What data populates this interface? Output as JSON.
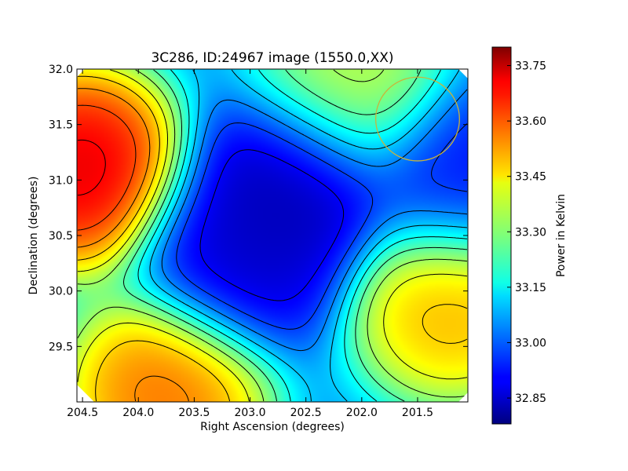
{
  "chart_data": {
    "type": "heatmap",
    "title": "3C286, ID:24967 image (1550.0,XX)",
    "xlabel": "Right Ascension (degrees)",
    "ylabel": "Declination (degrees)",
    "xlim": [
      204.55,
      201.05
    ],
    "ylim": [
      29.0,
      32.0
    ],
    "x_ticks": [
      204.5,
      204.0,
      203.5,
      203.0,
      202.5,
      202.0,
      201.5
    ],
    "x_tick_labels": [
      "204.5",
      "204.0",
      "203.5",
      "203.0",
      "202.5",
      "202.0",
      "201.5"
    ],
    "y_ticks": [
      29.5,
      30.0,
      30.5,
      31.0,
      31.5,
      32.0
    ],
    "y_tick_labels": [
      "29.5",
      "30.0",
      "30.5",
      "31.0",
      "31.5",
      "32.0"
    ],
    "colorbar": {
      "label": "Power in Kelvin",
      "range": [
        32.78,
        33.8
      ],
      "ticks": [
        32.85,
        33.0,
        33.15,
        33.3,
        33.45,
        33.6,
        33.75
      ],
      "tick_labels": [
        "32.85",
        "33.00",
        "33.15",
        "33.30",
        "33.45",
        "33.60",
        "33.75"
      ],
      "colormap": "jet"
    },
    "features": [
      {
        "ra": 204.5,
        "dec": 31.1,
        "value": 33.78,
        "kind": "max"
      },
      {
        "ra": 203.75,
        "dec": 29.1,
        "value": 33.62,
        "kind": "max"
      },
      {
        "ra": 201.2,
        "dec": 29.9,
        "value": 33.55,
        "kind": "max"
      },
      {
        "ra": 202.1,
        "dec": 31.85,
        "value": 33.4,
        "kind": "max"
      },
      {
        "ra": 202.6,
        "dec": 30.95,
        "value": 32.8,
        "kind": "min"
      },
      {
        "ra": 203.1,
        "dec": 30.3,
        "value": 32.84,
        "kind": "min"
      },
      {
        "ra": 201.1,
        "dec": 31.0,
        "value": 32.9,
        "kind": "min"
      }
    ],
    "background_value": 33.05,
    "contour_levels": [
      32.83,
      32.9,
      32.97,
      33.04,
      33.11,
      33.18,
      33.25,
      33.32,
      33.39,
      33.46,
      33.53,
      33.6,
      33.67,
      33.74
    ],
    "circle": {
      "ra": 201.5,
      "dec": 31.55,
      "radius_deg": 0.375,
      "color": "#c8b43c"
    },
    "grid": false
  }
}
